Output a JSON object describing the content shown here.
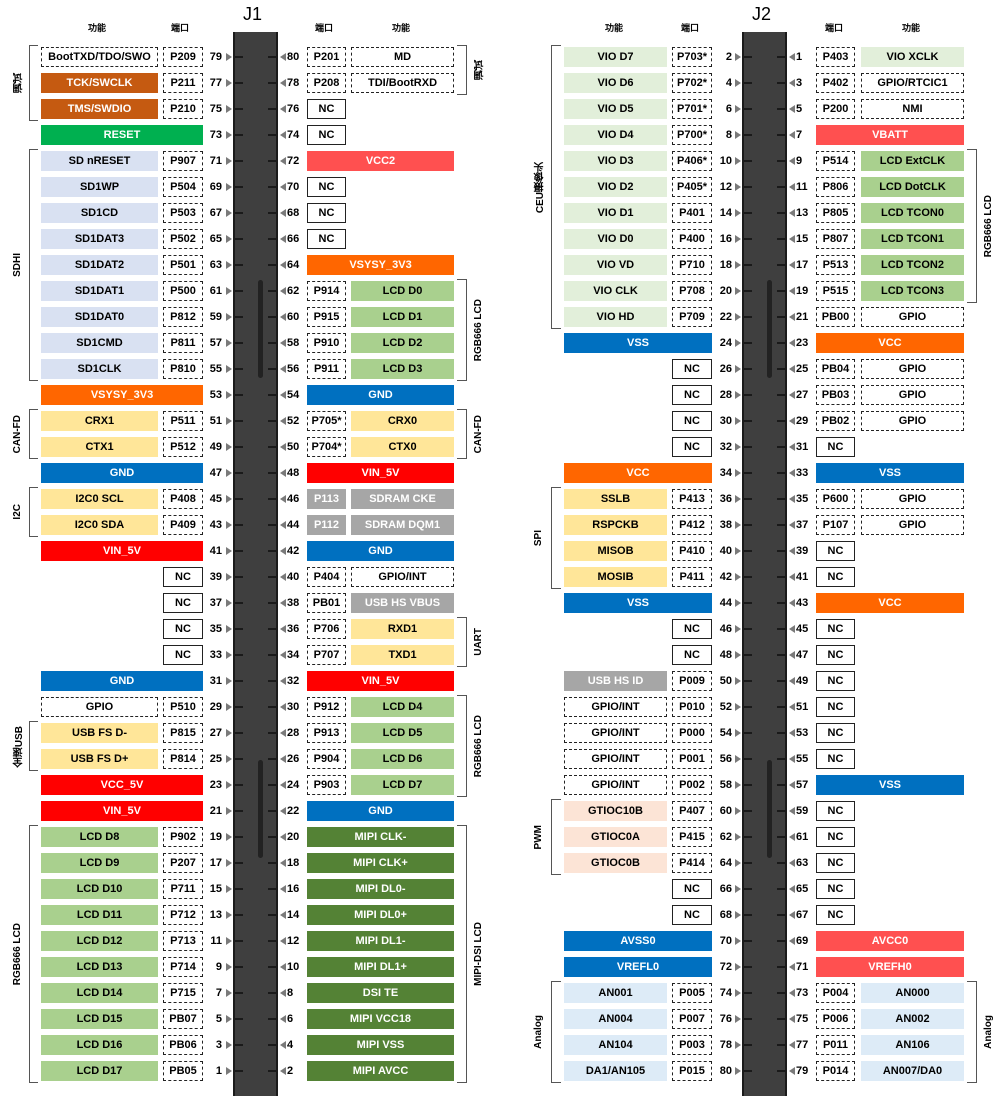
{
  "headers": {
    "j1_title": "J1",
    "j2_title": "J2",
    "func": "功能",
    "port": "端口"
  },
  "colors": {
    "gray_pad": "#a6a6a6",
    "green_rst": "#00b050",
    "orange_jtag": "#c55a11",
    "red": "#ff0000",
    "red2": "#ff5050",
    "orange": "#ff6600",
    "blue": "#0070c0",
    "lcd_green": "#a9d08e",
    "mipi_green": "#548235",
    "sd_lav": "#d9e1f2",
    "yellow": "#ffe699",
    "vio_green": "#e2efda",
    "pwm_peach": "#fce4d6",
    "analog_blue": "#ddebf7"
  },
  "j1": {
    "left": [
      {
        "n": "79",
        "port": "P209",
        "func": "BootTXD/TDO/SWO",
        "style": "white"
      },
      {
        "n": "77",
        "port": "P211",
        "func": "TCK/SWCLK",
        "style": "jtag"
      },
      {
        "n": "75",
        "port": "P210",
        "func": "TMS/SWDIO",
        "style": "jtag"
      },
      {
        "n": "73",
        "port": "",
        "func": "RESET",
        "style": "rst"
      },
      {
        "n": "71",
        "port": "P907",
        "func": "SD nRESET",
        "style": "sd"
      },
      {
        "n": "69",
        "port": "P504",
        "func": "SD1WP",
        "style": "sd"
      },
      {
        "n": "67",
        "port": "P503",
        "func": "SD1CD",
        "style": "sd"
      },
      {
        "n": "65",
        "port": "P502",
        "func": "SD1DAT3",
        "style": "sd"
      },
      {
        "n": "63",
        "port": "P501",
        "func": "SD1DAT2",
        "style": "sd"
      },
      {
        "n": "61",
        "port": "P500",
        "func": "SD1DAT1",
        "style": "sd"
      },
      {
        "n": "59",
        "port": "P812",
        "func": "SD1DAT0",
        "style": "sd"
      },
      {
        "n": "57",
        "port": "P811",
        "func": "SD1CMD",
        "style": "sd"
      },
      {
        "n": "55",
        "port": "P810",
        "func": "SD1CLK",
        "style": "sd"
      },
      {
        "n": "53",
        "port": "",
        "func": "VSYSY_3V3",
        "style": "orange"
      },
      {
        "n": "51",
        "port": "P511",
        "func": "CRX1",
        "style": "yellow"
      },
      {
        "n": "49",
        "port": "P512",
        "func": "CTX1",
        "style": "yellow"
      },
      {
        "n": "47",
        "port": "",
        "func": "GND",
        "style": "blue"
      },
      {
        "n": "45",
        "port": "P408",
        "func": "I2C0 SCL",
        "style": "yellow"
      },
      {
        "n": "43",
        "port": "P409",
        "func": "I2C0 SDA",
        "style": "yellow"
      },
      {
        "n": "41",
        "port": "",
        "func": "VIN_5V",
        "style": "red"
      },
      {
        "n": "39",
        "port": "NC",
        "func": "",
        "style": "none"
      },
      {
        "n": "37",
        "port": "NC",
        "func": "",
        "style": "none"
      },
      {
        "n": "35",
        "port": "NC",
        "func": "",
        "style": "none"
      },
      {
        "n": "33",
        "port": "NC",
        "func": "",
        "style": "none"
      },
      {
        "n": "31",
        "port": "",
        "func": "GND",
        "style": "blue"
      },
      {
        "n": "29",
        "port": "P510",
        "func": "GPIO",
        "style": "white"
      },
      {
        "n": "27",
        "port": "P815",
        "func": "USB FS D-",
        "style": "yellow"
      },
      {
        "n": "25",
        "port": "P814",
        "func": "USB FS D+",
        "style": "yellow"
      },
      {
        "n": "23",
        "port": "",
        "func": "VCC_5V",
        "style": "red"
      },
      {
        "n": "21",
        "port": "",
        "func": "VIN_5V",
        "style": "red"
      },
      {
        "n": "19",
        "port": "P902",
        "func": "LCD D8",
        "style": "lcd"
      },
      {
        "n": "17",
        "port": "P207",
        "func": "LCD D9",
        "style": "lcd"
      },
      {
        "n": "15",
        "port": "P711",
        "func": "LCD D10",
        "style": "lcd"
      },
      {
        "n": "13",
        "port": "P712",
        "func": "LCD D11",
        "style": "lcd"
      },
      {
        "n": "11",
        "port": "P713",
        "func": "LCD D12",
        "style": "lcd"
      },
      {
        "n": "9",
        "port": "P714",
        "func": "LCD D13",
        "style": "lcd"
      },
      {
        "n": "7",
        "port": "P715",
        "func": "LCD D14",
        "style": "lcd"
      },
      {
        "n": "5",
        "port": "PB07",
        "func": "LCD D15",
        "style": "lcd"
      },
      {
        "n": "3",
        "port": "PB06",
        "func": "LCD D16",
        "style": "lcd"
      },
      {
        "n": "1",
        "port": "PB05",
        "func": "LCD D17",
        "style": "lcd"
      }
    ],
    "right": [
      {
        "n": "80",
        "port": "P201",
        "func": "MD",
        "style": "white"
      },
      {
        "n": "78",
        "port": "P208",
        "func": "TDI/BootRXD",
        "style": "white"
      },
      {
        "n": "76",
        "port": "NC",
        "func": "",
        "style": "none"
      },
      {
        "n": "74",
        "port": "NC",
        "func": "",
        "style": "none"
      },
      {
        "n": "72",
        "port": "",
        "func": "VCC2",
        "style": "red2"
      },
      {
        "n": "70",
        "port": "NC",
        "func": "",
        "style": "none"
      },
      {
        "n": "68",
        "port": "NC",
        "func": "",
        "style": "none"
      },
      {
        "n": "66",
        "port": "NC",
        "func": "",
        "style": "none"
      },
      {
        "n": "64",
        "port": "",
        "func": "VSYSY_3V3",
        "style": "orange"
      },
      {
        "n": "62",
        "port": "P914",
        "func": "LCD D0",
        "style": "lcd"
      },
      {
        "n": "60",
        "port": "P915",
        "func": "LCD D1",
        "style": "lcd"
      },
      {
        "n": "58",
        "port": "P910",
        "func": "LCD D2",
        "style": "lcd"
      },
      {
        "n": "56",
        "port": "P911",
        "func": "LCD D3",
        "style": "lcd"
      },
      {
        "n": "54",
        "port": "",
        "func": "GND",
        "style": "blue"
      },
      {
        "n": "52",
        "port": "P705*",
        "func": "CRX0",
        "style": "yellow"
      },
      {
        "n": "50",
        "port": "P704*",
        "func": "CTX0",
        "style": "yellow"
      },
      {
        "n": "48",
        "port": "",
        "func": "VIN_5V",
        "style": "red"
      },
      {
        "n": "46",
        "port": "P113",
        "func": "SDRAM CKE",
        "style": "graypad"
      },
      {
        "n": "44",
        "port": "P112",
        "func": "SDRAM DQM1",
        "style": "graypad"
      },
      {
        "n": "42",
        "port": "",
        "func": "GND",
        "style": "blue"
      },
      {
        "n": "40",
        "port": "P404",
        "func": "GPIO/INT",
        "style": "white"
      },
      {
        "n": "38",
        "port": "PB01",
        "func": "USB HS VBUS",
        "style": "gray"
      },
      {
        "n": "36",
        "port": "P706",
        "func": "RXD1",
        "style": "yellow"
      },
      {
        "n": "34",
        "port": "P707",
        "func": "TXD1",
        "style": "yellow"
      },
      {
        "n": "32",
        "port": "",
        "func": "VIN_5V",
        "style": "red"
      },
      {
        "n": "30",
        "port": "P912",
        "func": "LCD D4",
        "style": "lcd"
      },
      {
        "n": "28",
        "port": "P913",
        "func": "LCD D5",
        "style": "lcd"
      },
      {
        "n": "26",
        "port": "P904",
        "func": "LCD D6",
        "style": "lcd"
      },
      {
        "n": "24",
        "port": "P903",
        "func": "LCD D7",
        "style": "lcd"
      },
      {
        "n": "22",
        "port": "",
        "func": "GND",
        "style": "blue"
      },
      {
        "n": "20",
        "port": "",
        "func": "MIPI CLK-",
        "style": "mipi"
      },
      {
        "n": "18",
        "port": "",
        "func": "MIPI CLK+",
        "style": "mipi"
      },
      {
        "n": "16",
        "port": "",
        "func": "MIPI DL0-",
        "style": "mipi"
      },
      {
        "n": "14",
        "port": "",
        "func": "MIPI DL0+",
        "style": "mipi"
      },
      {
        "n": "12",
        "port": "",
        "func": "MIPI DL1-",
        "style": "mipi"
      },
      {
        "n": "10",
        "port": "",
        "func": "MIPI DL1+",
        "style": "mipi"
      },
      {
        "n": "8",
        "port": "",
        "func": "DSI TE",
        "style": "mipi"
      },
      {
        "n": "6",
        "port": "",
        "func": "MIPI VCC18",
        "style": "mipi"
      },
      {
        "n": "4",
        "port": "",
        "func": "MIPI VSS",
        "style": "mipi"
      },
      {
        "n": "2",
        "port": "",
        "func": "MIPI AVCC",
        "style": "mipi"
      }
    ]
  },
  "j2": {
    "left": [
      {
        "n": "2",
        "port": "P703*",
        "func": "VIO D7",
        "style": "vio"
      },
      {
        "n": "4",
        "port": "P702*",
        "func": "VIO D6",
        "style": "vio"
      },
      {
        "n": "6",
        "port": "P701*",
        "func": "VIO D5",
        "style": "vio"
      },
      {
        "n": "8",
        "port": "P700*",
        "func": "VIO D4",
        "style": "vio"
      },
      {
        "n": "10",
        "port": "P406*",
        "func": "VIO D3",
        "style": "vio"
      },
      {
        "n": "12",
        "port": "P405*",
        "func": "VIO D2",
        "style": "vio"
      },
      {
        "n": "14",
        "port": "P401",
        "func": "VIO D1",
        "style": "vio"
      },
      {
        "n": "16",
        "port": "P400",
        "func": "VIO D0",
        "style": "vio"
      },
      {
        "n": "18",
        "port": "P710",
        "func": "VIO VD",
        "style": "vio"
      },
      {
        "n": "20",
        "port": "P708",
        "func": "VIO CLK",
        "style": "vio"
      },
      {
        "n": "22",
        "port": "P709",
        "func": "VIO HD",
        "style": "vio"
      },
      {
        "n": "24",
        "port": "",
        "func": "VSS",
        "style": "blue"
      },
      {
        "n": "26",
        "port": "NC",
        "func": "",
        "style": "none"
      },
      {
        "n": "28",
        "port": "NC",
        "func": "",
        "style": "none"
      },
      {
        "n": "30",
        "port": "NC",
        "func": "",
        "style": "none"
      },
      {
        "n": "32",
        "port": "NC",
        "func": "",
        "style": "none"
      },
      {
        "n": "34",
        "port": "",
        "func": "VCC",
        "style": "orange"
      },
      {
        "n": "36",
        "port": "P413",
        "func": "SSLB",
        "style": "yellow"
      },
      {
        "n": "38",
        "port": "P412",
        "func": "RSPCKB",
        "style": "yellow"
      },
      {
        "n": "40",
        "port": "P410",
        "func": "MISOB",
        "style": "yellow"
      },
      {
        "n": "42",
        "port": "P411",
        "func": "MOSIB",
        "style": "yellow"
      },
      {
        "n": "44",
        "port": "",
        "func": "VSS",
        "style": "blue"
      },
      {
        "n": "46",
        "port": "NC",
        "func": "",
        "style": "none"
      },
      {
        "n": "48",
        "port": "NC",
        "func": "",
        "style": "none"
      },
      {
        "n": "50",
        "port": "P009",
        "func": "USB HS ID",
        "style": "gray"
      },
      {
        "n": "52",
        "port": "P010",
        "func": "GPIO/INT",
        "style": "white"
      },
      {
        "n": "54",
        "port": "P000",
        "func": "GPIO/INT",
        "style": "white"
      },
      {
        "n": "56",
        "port": "P001",
        "func": "GPIO/INT",
        "style": "white"
      },
      {
        "n": "58",
        "port": "P002",
        "func": "GPIO/INT",
        "style": "white"
      },
      {
        "n": "60",
        "port": "P407",
        "func": "GTIOC10B",
        "style": "pwm"
      },
      {
        "n": "62",
        "port": "P415",
        "func": "GTIOC0A",
        "style": "pwm"
      },
      {
        "n": "64",
        "port": "P414",
        "func": "GTIOC0B",
        "style": "pwm"
      },
      {
        "n": "66",
        "port": "NC",
        "func": "",
        "style": "none"
      },
      {
        "n": "68",
        "port": "NC",
        "func": "",
        "style": "none"
      },
      {
        "n": "70",
        "port": "",
        "func": "AVSS0",
        "style": "blue"
      },
      {
        "n": "72",
        "port": "",
        "func": "VREFL0",
        "style": "blue"
      },
      {
        "n": "74",
        "port": "P005",
        "func": "AN001",
        "style": "analog"
      },
      {
        "n": "76",
        "port": "P007",
        "func": "AN004",
        "style": "analog"
      },
      {
        "n": "78",
        "port": "P003",
        "func": "AN104",
        "style": "analog"
      },
      {
        "n": "80",
        "port": "P015",
        "func": "DA1/AN105",
        "style": "analog"
      }
    ],
    "right": [
      {
        "n": "1",
        "port": "P403",
        "func": "VIO XCLK",
        "style": "vio"
      },
      {
        "n": "3",
        "port": "P402",
        "func": "GPIO/RTCIC1",
        "style": "white"
      },
      {
        "n": "5",
        "port": "P200",
        "func": "NMI",
        "style": "white"
      },
      {
        "n": "7",
        "port": "",
        "func": "VBATT",
        "style": "red2"
      },
      {
        "n": "9",
        "port": "P514",
        "func": "LCD ExtCLK",
        "style": "lcd"
      },
      {
        "n": "11",
        "port": "P806",
        "func": "LCD DotCLK",
        "style": "lcd"
      },
      {
        "n": "13",
        "port": "P805",
        "func": "LCD TCON0",
        "style": "lcd"
      },
      {
        "n": "15",
        "port": "P807",
        "func": "LCD TCON1",
        "style": "lcd"
      },
      {
        "n": "17",
        "port": "P513",
        "func": "LCD TCON2",
        "style": "lcd"
      },
      {
        "n": "19",
        "port": "P515",
        "func": "LCD TCON3",
        "style": "lcd"
      },
      {
        "n": "21",
        "port": "PB00",
        "func": "GPIO",
        "style": "white"
      },
      {
        "n": "23",
        "port": "",
        "func": "VCC",
        "style": "orange"
      },
      {
        "n": "25",
        "port": "PB04",
        "func": "GPIO",
        "style": "white"
      },
      {
        "n": "27",
        "port": "PB03",
        "func": "GPIO",
        "style": "white"
      },
      {
        "n": "29",
        "port": "PB02",
        "func": "GPIO",
        "style": "white"
      },
      {
        "n": "31",
        "port": "NC",
        "func": "",
        "style": "none"
      },
      {
        "n": "33",
        "port": "",
        "func": "VSS",
        "style": "blue"
      },
      {
        "n": "35",
        "port": "P600",
        "func": "GPIO",
        "style": "white"
      },
      {
        "n": "37",
        "port": "P107",
        "func": "GPIO",
        "style": "white"
      },
      {
        "n": "39",
        "port": "NC",
        "func": "",
        "style": "none"
      },
      {
        "n": "41",
        "port": "NC",
        "func": "",
        "style": "none"
      },
      {
        "n": "43",
        "port": "",
        "func": "VCC",
        "style": "orange"
      },
      {
        "n": "45",
        "port": "NC",
        "func": "",
        "style": "none"
      },
      {
        "n": "47",
        "port": "NC",
        "func": "",
        "style": "none"
      },
      {
        "n": "49",
        "port": "NC",
        "func": "",
        "style": "none"
      },
      {
        "n": "51",
        "port": "NC",
        "func": "",
        "style": "none"
      },
      {
        "n": "53",
        "port": "NC",
        "func": "",
        "style": "none"
      },
      {
        "n": "55",
        "port": "NC",
        "func": "",
        "style": "none"
      },
      {
        "n": "57",
        "port": "",
        "func": "VSS",
        "style": "blue"
      },
      {
        "n": "59",
        "port": "NC",
        "func": "",
        "style": "none"
      },
      {
        "n": "61",
        "port": "NC",
        "func": "",
        "style": "none"
      },
      {
        "n": "63",
        "port": "NC",
        "func": "",
        "style": "none"
      },
      {
        "n": "65",
        "port": "NC",
        "func": "",
        "style": "none"
      },
      {
        "n": "67",
        "port": "NC",
        "func": "",
        "style": "none"
      },
      {
        "n": "69",
        "port": "",
        "func": "AVCC0",
        "style": "red2"
      },
      {
        "n": "71",
        "port": "",
        "func": "VREFH0",
        "style": "red2"
      },
      {
        "n": "73",
        "port": "P004",
        "func": "AN000",
        "style": "analog"
      },
      {
        "n": "75",
        "port": "P006",
        "func": "AN002",
        "style": "analog"
      },
      {
        "n": "77",
        "port": "P011",
        "func": "AN106",
        "style": "analog"
      },
      {
        "n": "79",
        "port": "P014",
        "func": "AN007/DA0",
        "style": "analog"
      }
    ]
  },
  "groups": {
    "j1_left": [
      {
        "label": "调试",
        "from": 0,
        "to": 2
      },
      {
        "label": "SDHI",
        "from": 4,
        "to": 12
      },
      {
        "label": "CAN-FD",
        "from": 14,
        "to": 15
      },
      {
        "label": "I2C",
        "from": 17,
        "to": 18
      },
      {
        "label": "全速USB",
        "from": 26,
        "to": 27
      },
      {
        "label": "RGB666 LCD",
        "from": 30,
        "to": 39
      }
    ],
    "j1_right": [
      {
        "label": "调试",
        "from": 0,
        "to": 1
      },
      {
        "label": "RGB666 LCD",
        "from": 9,
        "to": 12
      },
      {
        "label": "CAN-FD",
        "from": 14,
        "to": 15
      },
      {
        "label": "UART",
        "from": 22,
        "to": 23
      },
      {
        "label": "RGB666 LCD",
        "from": 25,
        "to": 28
      },
      {
        "label": "MIPI-DSI LCD",
        "from": 30,
        "to": 39
      }
    ],
    "j2_left": [
      {
        "label": "CEU摄像头",
        "from": 0,
        "to": 10
      },
      {
        "label": "SPI",
        "from": 17,
        "to": 20
      },
      {
        "label": "PWM",
        "from": 29,
        "to": 31
      },
      {
        "label": "Analog",
        "from": 36,
        "to": 39
      }
    ],
    "j2_right": [
      {
        "label": "RGB666 LCD",
        "from": 4,
        "to": 9
      },
      {
        "label": "Analog",
        "from": 36,
        "to": 39
      }
    ]
  }
}
